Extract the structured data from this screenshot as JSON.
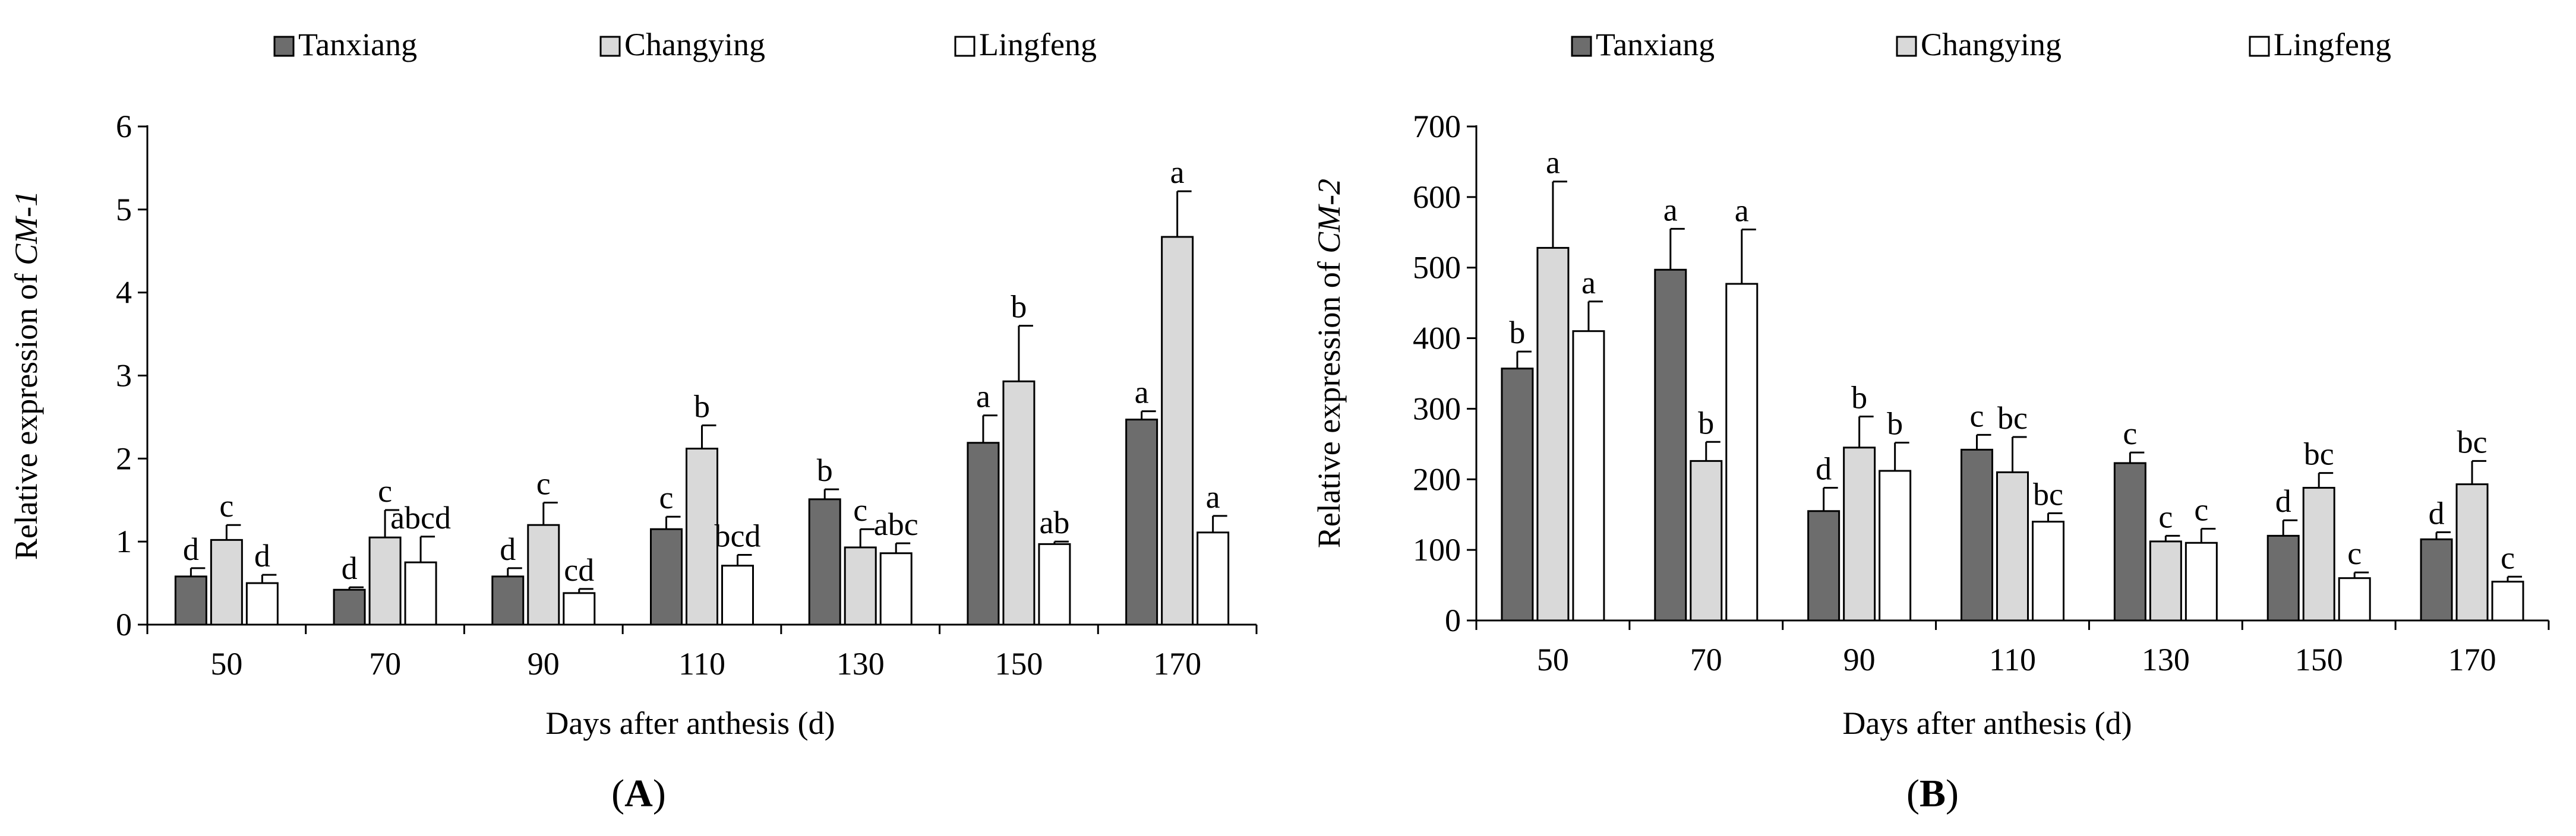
{
  "colors": {
    "Tanxiang": "#6d6d6d",
    "Changying": "#d9d9d9",
    "Lingfeng": "#ffffff",
    "outline": "#000000"
  },
  "chart_data": [
    {
      "type": "bar",
      "panel_label": "A",
      "title": "",
      "xlabel": "Days after anthesis (d)",
      "ylabel_prefix": "Relative expression of ",
      "ylabel_gene": "CM-1",
      "ylim": [
        0,
        6
      ],
      "yticks": [
        "0",
        "1",
        "2",
        "3",
        "4",
        "5",
        "6"
      ],
      "categories": [
        "50",
        "70",
        "90",
        "110",
        "130",
        "150",
        "170"
      ],
      "legend": {
        "position": "top-center",
        "entries": [
          "Tanxiang",
          "Changying",
          "Lingfeng"
        ]
      },
      "series": [
        {
          "name": "Tanxiang",
          "values": [
            0.58,
            0.42,
            0.58,
            1.15,
            1.51,
            2.19,
            2.47
          ],
          "errors": [
            0.1,
            0.03,
            0.1,
            0.15,
            0.12,
            0.33,
            0.1
          ],
          "letters": [
            "d",
            "d",
            "d",
            "c",
            "b",
            "a",
            "a"
          ]
        },
        {
          "name": "Changying",
          "values": [
            1.02,
            1.05,
            1.2,
            2.12,
            0.93,
            2.93,
            4.67
          ],
          "errors": [
            0.18,
            0.33,
            0.27,
            0.28,
            0.22,
            0.67,
            0.55
          ],
          "letters": [
            "c",
            "c",
            "c",
            "b",
            "c",
            "b",
            "a"
          ]
        },
        {
          "name": "Lingfeng",
          "values": [
            0.5,
            0.75,
            0.38,
            0.71,
            0.86,
            0.97,
            1.11
          ],
          "errors": [
            0.1,
            0.31,
            0.05,
            0.13,
            0.12,
            0.03,
            0.2
          ],
          "letters": [
            "d",
            "abcd",
            "cd",
            "bcd",
            "abc",
            "ab",
            "a"
          ]
        }
      ]
    },
    {
      "type": "bar",
      "panel_label": "B",
      "title": "",
      "xlabel": "Days after anthesis (d)",
      "ylabel_prefix": "Relative expression of ",
      "ylabel_gene": "CM-2",
      "ylim": [
        0,
        700
      ],
      "yticks": [
        "0",
        "100",
        "200",
        "300",
        "400",
        "500",
        "600",
        "700"
      ],
      "categories": [
        "50",
        "70",
        "90",
        "110",
        "130",
        "150",
        "170"
      ],
      "legend": {
        "position": "top-center",
        "entries": [
          "Tanxiang",
          "Changying",
          "Lingfeng"
        ]
      },
      "series": [
        {
          "name": "Tanxiang",
          "values": [
            357,
            497,
            155,
            242,
            223,
            120,
            115
          ],
          "errors": [
            24,
            58,
            33,
            21,
            15,
            22,
            10
          ],
          "letters": [
            "b",
            "a",
            "d",
            "c",
            "c",
            "d",
            "d"
          ]
        },
        {
          "name": "Changying",
          "values": [
            528,
            226,
            245,
            210,
            112,
            188,
            193
          ],
          "errors": [
            94,
            27,
            44,
            50,
            8,
            21,
            33
          ],
          "letters": [
            "a",
            "b",
            "b",
            "bc",
            "c",
            "bc",
            "bc"
          ]
        },
        {
          "name": "Lingfeng",
          "values": [
            410,
            477,
            212,
            140,
            110,
            60,
            55
          ],
          "errors": [
            42,
            77,
            40,
            12,
            20,
            8,
            7
          ],
          "letters": [
            "a",
            "a",
            "b",
            "bc",
            "c",
            "c",
            "c"
          ]
        }
      ]
    }
  ]
}
